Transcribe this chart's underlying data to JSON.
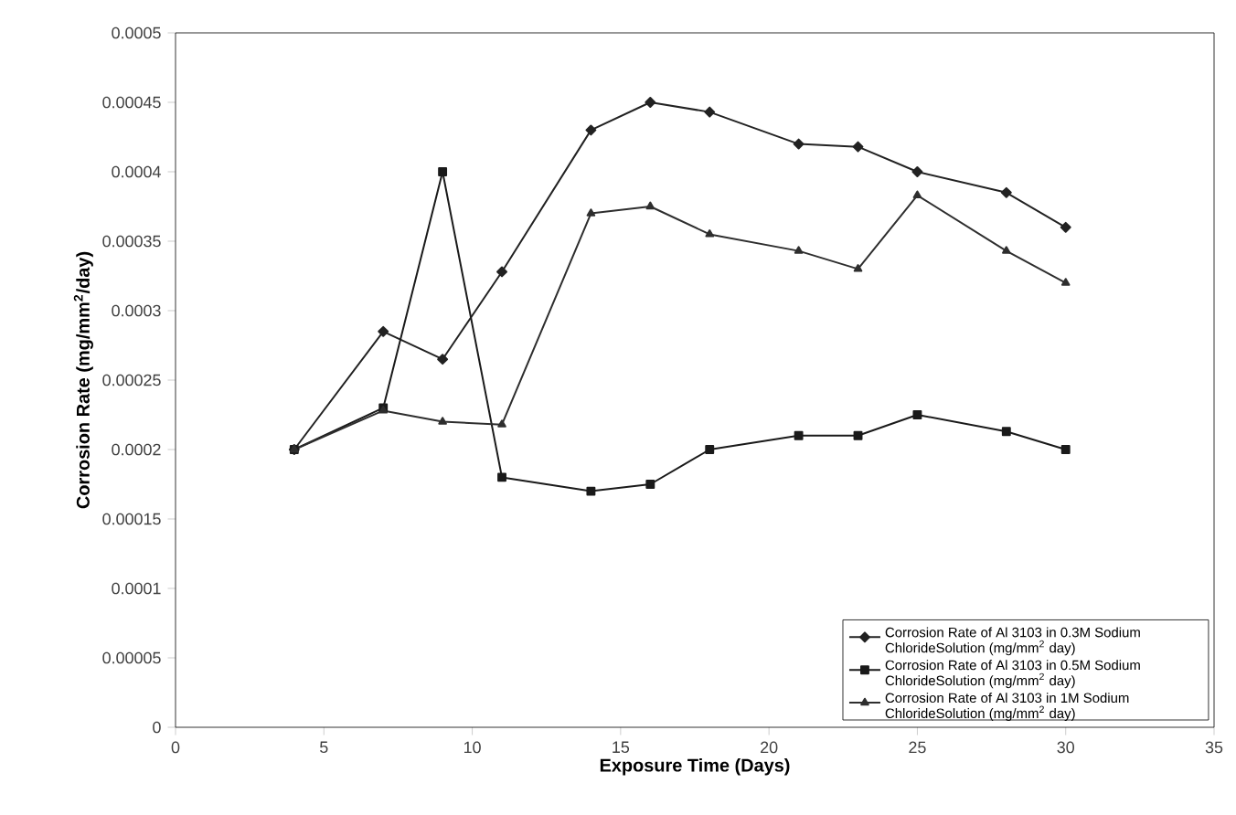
{
  "chart_data": {
    "type": "line",
    "xlabel": "Exposure Time (Days)",
    "ylabel": "Corrosion Rate (mg/mm$^{2}$/day)",
    "x": [
      4,
      7,
      9,
      11,
      14,
      16,
      18,
      21,
      23,
      25,
      28,
      30
    ],
    "series": [
      {
        "name": "Corrosion Rate of Al 3103 in 0.3M Sodium ChlorideSolution (mg/mm$^{2}$ day)",
        "color": "#222222",
        "marker": "diamond",
        "values": [
          0.0002,
          0.000285,
          0.000265,
          0.000328,
          0.00043,
          0.00045,
          0.000443,
          0.00042,
          0.000418,
          0.0004,
          0.000385,
          0.00036
        ]
      },
      {
        "name": "Corrosion Rate of Al 3103 in 0.5M Sodium ChlorideSolution (mg/mm$^{2}$ day)",
        "color": "#1a1a1a",
        "marker": "square",
        "values": [
          0.0002,
          0.00023,
          0.0004,
          0.00018,
          0.00017,
          0.000175,
          0.0002,
          0.00021,
          0.00021,
          0.000225,
          0.000213,
          0.0002
        ]
      },
      {
        "name": "Corrosion Rate of Al 3103 in 1M Sodium ChlorideSolution (mg/mm$^{2}$ day)",
        "color": "#2e2e2e",
        "marker": "triangle",
        "values": [
          0.0002,
          0.000228,
          0.00022,
          0.000218,
          0.00037,
          0.000375,
          0.000355,
          0.000343,
          0.00033,
          0.000383,
          0.000343,
          0.00032
        ]
      }
    ],
    "xlim": [
      0,
      35
    ],
    "xticks": [
      0,
      5,
      10,
      15,
      20,
      25,
      30,
      35
    ],
    "ylim": [
      0,
      0.0005
    ],
    "yticks": [
      {
        "value": 0,
        "label": "0"
      },
      {
        "value": 5e-05,
        "label": "0.00005"
      },
      {
        "value": 0.0001,
        "label": "0.0001"
      },
      {
        "value": 0.00015,
        "label": "0.00015"
      },
      {
        "value": 0.0002,
        "label": "0.0002"
      },
      {
        "value": 0.00025,
        "label": "0.00025"
      },
      {
        "value": 0.0003,
        "label": "0.0003"
      },
      {
        "value": 0.00035,
        "label": "0.00035"
      },
      {
        "value": 0.0004,
        "label": "0.0004"
      },
      {
        "value": 0.00045,
        "label": "0.00045"
      },
      {
        "value": 0.0005,
        "label": "0.0005"
      }
    ],
    "grid": false,
    "legend": "bottom right"
  }
}
